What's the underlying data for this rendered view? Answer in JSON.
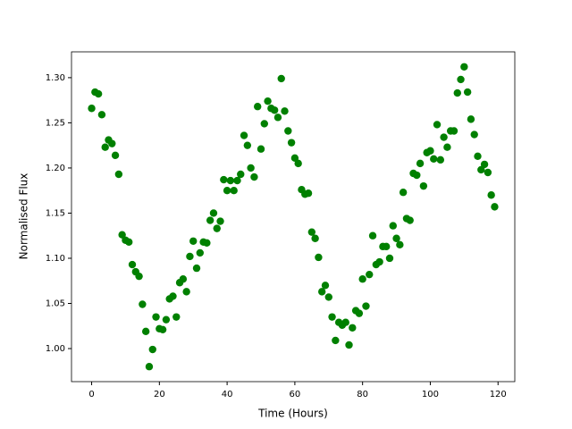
{
  "chart_data": {
    "type": "scatter",
    "xlabel": "Time (Hours)",
    "ylabel": "Normalised Flux",
    "series": [
      {
        "color": "#008000",
        "x": [
          0,
          1,
          2,
          3,
          4,
          5,
          6,
          7,
          8,
          9,
          10,
          11,
          12,
          13,
          14,
          15,
          16,
          17,
          18,
          19,
          20,
          21,
          22,
          23,
          24,
          25,
          26,
          27,
          28,
          29,
          30,
          31,
          32,
          33,
          34,
          35,
          36,
          37,
          38,
          39,
          40,
          41,
          42,
          43,
          44,
          45,
          46,
          47,
          48,
          49,
          50,
          51,
          52,
          53,
          54,
          55,
          56,
          57,
          58,
          59,
          60,
          61,
          62,
          63,
          64,
          65,
          66,
          67,
          68,
          69,
          70,
          71,
          72,
          73,
          74,
          75,
          76,
          77,
          78,
          79,
          80,
          81,
          82,
          83,
          84,
          85,
          86,
          87,
          88,
          89,
          90,
          91,
          92,
          93,
          94,
          95,
          96,
          97,
          98,
          99,
          100,
          101,
          102,
          103,
          104,
          105,
          106,
          107,
          108,
          109,
          110,
          111,
          112,
          113,
          114,
          115,
          116,
          117,
          118,
          119
        ],
        "values": [
          1.266,
          1.284,
          1.282,
          1.259,
          1.223,
          1.231,
          1.227,
          1.214,
          1.193,
          1.126,
          1.12,
          1.118,
          1.093,
          1.085,
          1.08,
          1.049,
          1.019,
          0.98,
          0.999,
          1.035,
          1.022,
          1.021,
          1.032,
          1.055,
          1.058,
          1.035,
          1.073,
          1.077,
          1.063,
          1.102,
          1.119,
          1.089,
          1.106,
          1.118,
          1.117,
          1.142,
          1.15,
          1.133,
          1.141,
          1.187,
          1.175,
          1.186,
          1.175,
          1.186,
          1.193,
          1.236,
          1.225,
          1.2,
          1.19,
          1.268,
          1.221,
          1.249,
          1.274,
          1.266,
          1.264,
          1.256,
          1.299,
          1.263,
          1.241,
          1.228,
          1.211,
          1.205,
          1.176,
          1.171,
          1.172,
          1.129,
          1.122,
          1.101,
          1.063,
          1.07,
          1.057,
          1.035,
          1.009,
          1.029,
          1.026,
          1.029,
          1.004,
          1.023,
          1.042,
          1.039,
          1.077,
          1.047,
          1.082,
          1.125,
          1.093,
          1.096,
          1.113,
          1.113,
          1.1,
          1.136,
          1.122,
          1.115,
          1.173,
          1.144,
          1.142,
          1.194,
          1.192,
          1.205,
          1.18,
          1.217,
          1.219,
          1.21,
          1.248,
          1.209,
          1.234,
          1.223,
          1.241,
          1.241,
          1.283,
          1.298,
          1.312,
          1.284,
          1.254,
          1.237,
          1.213,
          1.198,
          1.204,
          1.195,
          1.17,
          1.157
        ]
      }
    ],
    "xlim": [
      -5.95,
      124.95
    ],
    "xticks": [
      0,
      20,
      40,
      60,
      80,
      100,
      120
    ],
    "ylim": [
      0.9634,
      1.3286
    ],
    "yticks": [
      {
        "value": 1.0,
        "label": "1.00"
      },
      {
        "value": 1.05,
        "label": "1.05"
      },
      {
        "value": 1.1,
        "label": "1.10"
      },
      {
        "value": 1.15,
        "label": "1.15"
      },
      {
        "value": 1.2,
        "label": "1.20"
      },
      {
        "value": 1.25,
        "label": "1.25"
      },
      {
        "value": 1.3,
        "label": "1.30"
      }
    ],
    "grid": false
  }
}
